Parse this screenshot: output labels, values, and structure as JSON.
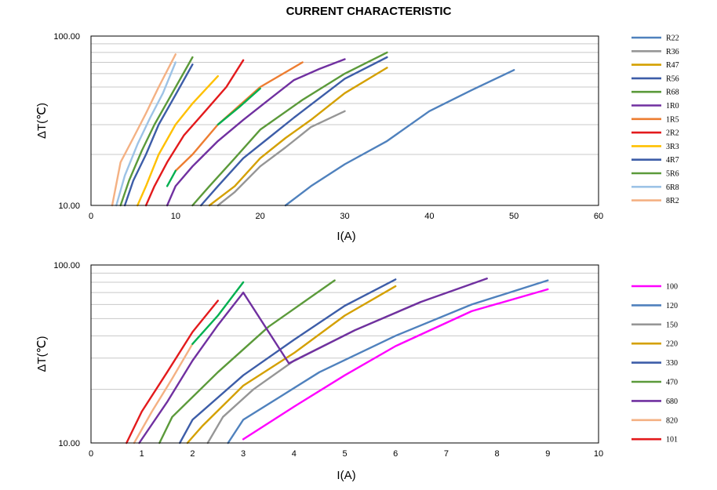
{
  "chart_data": [
    {
      "type": "line",
      "title": "CURRENT CHARACTERISTIC",
      "xlabel": "I(A)",
      "ylabel": "ΔT(℃)",
      "xlim": [
        0,
        60
      ],
      "ylim": [
        10,
        100
      ],
      "yscale": "log",
      "xticks": [
        "0",
        "10",
        "20",
        "30",
        "40",
        "50",
        "60"
      ],
      "yticks": [
        "10.00",
        "100.00"
      ],
      "grid": "horizontal minor log gridlines",
      "legend_position": "right",
      "series": [
        {
          "name": "R22",
          "color": "#4f81bd",
          "x": [
            23,
            26,
            30,
            35,
            40,
            45,
            50
          ],
          "y": [
            10,
            13,
            17.5,
            24,
            36,
            48,
            63
          ]
        },
        {
          "name": "R36",
          "color": "#969696",
          "x": [
            15,
            17,
            20,
            23,
            26,
            30
          ],
          "y": [
            10,
            12,
            17,
            22,
            29,
            36
          ]
        },
        {
          "name": "R47",
          "color": "#d4a000",
          "x": [
            14,
            17,
            20,
            23,
            26,
            30,
            35
          ],
          "y": [
            10,
            13,
            19,
            25,
            32,
            46,
            65
          ]
        },
        {
          "name": "R56",
          "color": "#3d5da8",
          "x": [
            13,
            15,
            18,
            21,
            24,
            30,
            35
          ],
          "y": [
            10,
            13,
            19,
            25,
            33,
            56,
            75
          ]
        },
        {
          "name": "R68",
          "color": "#5b9a3a",
          "x": [
            12,
            14,
            17,
            20,
            25,
            30,
            35
          ],
          "y": [
            10,
            13,
            19,
            28,
            42,
            60,
            80
          ]
        },
        {
          "name": "1R0",
          "color": "#7030a0",
          "x": [
            9,
            10,
            12,
            15,
            18,
            21,
            24,
            27,
            30
          ],
          "y": [
            10,
            13,
            17,
            24,
            32,
            42,
            55,
            64,
            73
          ]
        },
        {
          "name": "1R5",
          "color": "#ed7d31",
          "x": [
            10,
            12,
            15,
            20,
            25
          ],
          "y": [
            16,
            20,
            30,
            50,
            70
          ]
        },
        {
          "name": "2R2",
          "color": "#e31a1c",
          "x": [
            6.5,
            7.5,
            9,
            11,
            13.5,
            16,
            18
          ],
          "y": [
            10,
            13,
            18,
            26,
            36,
            50,
            72
          ]
        },
        {
          "name": "3R3",
          "color": "#ffc000",
          "x": [
            5.5,
            6.5,
            8,
            10,
            12,
            15
          ],
          "y": [
            10,
            13,
            20,
            30,
            40,
            58
          ]
        },
        {
          "name": "4R7",
          "color": "#3d5da8",
          "x": [
            4,
            5,
            6.5,
            8,
            10,
            12
          ],
          "y": [
            10,
            14,
            20,
            30,
            45,
            68
          ]
        },
        {
          "name": "5R6",
          "color": "#5b9a3a",
          "x": [
            3.5,
            4.5,
            6,
            7.5,
            9.5,
            12
          ],
          "y": [
            10,
            14,
            21,
            30,
            45,
            75
          ]
        },
        {
          "name": "6R8",
          "color": "#9dc3e6",
          "x": [
            3,
            4,
            5.5,
            7,
            8.5,
            10
          ],
          "y": [
            10,
            15,
            23,
            33,
            46,
            70
          ]
        },
        {
          "name": "8R2",
          "color": "#f4b183",
          "x": [
            2.5,
            3.5,
            5,
            6.5,
            8,
            10
          ],
          "y": [
            10,
            18,
            25,
            35,
            50,
            78
          ]
        },
        {
          "name": "",
          "color": "#00b050",
          "x": [
            15,
            17.5,
            20
          ],
          "y": [
            30,
            38,
            49
          ]
        },
        {
          "name": "",
          "color": "#00b050",
          "x": [
            9,
            10
          ],
          "y": [
            13,
            16
          ]
        }
      ]
    },
    {
      "type": "line",
      "xlabel": "I(A)",
      "ylabel": "ΔT(℃)",
      "xlim": [
        0,
        10
      ],
      "ylim": [
        10,
        100
      ],
      "yscale": "log",
      "xticks": [
        "0",
        "1",
        "2",
        "3",
        "4",
        "5",
        "6",
        "7",
        "8",
        "9",
        "10"
      ],
      "yticks": [
        "10.00",
        "100.00"
      ],
      "grid": "horizontal minor log gridlines",
      "legend_position": "right",
      "series": [
        {
          "name": "100",
          "color": "#ff00ff",
          "x": [
            3,
            4,
            5,
            6,
            7.5,
            9
          ],
          "y": [
            10.5,
            16,
            24,
            35,
            55,
            73
          ]
        },
        {
          "name": "120",
          "color": "#4f81bd",
          "x": [
            2.7,
            3,
            3.7,
            4.5,
            6,
            7.5,
            9
          ],
          "y": [
            10,
            13.5,
            18,
            25,
            40,
            60,
            82
          ]
        },
        {
          "name": "150",
          "color": "#969696",
          "x": [
            2.3,
            2.6,
            3.2,
            4,
            5.2,
            6.5
          ],
          "y": [
            10,
            14,
            20,
            29,
            43,
            62
          ]
        },
        {
          "name": "220",
          "color": "#d4a000",
          "x": [
            1.9,
            2.2,
            3,
            4,
            5,
            6
          ],
          "y": [
            10,
            12.5,
            21,
            32,
            52,
            76
          ]
        },
        {
          "name": "330",
          "color": "#3d5da8",
          "x": [
            1.75,
            2,
            3,
            4,
            5,
            6
          ],
          "y": [
            10,
            13.5,
            24,
            38,
            59,
            83
          ]
        },
        {
          "name": "470",
          "color": "#5b9a3a",
          "x": [
            1.35,
            1.6,
            2.5,
            3.5,
            4.8
          ],
          "y": [
            10,
            14,
            25,
            45,
            82
          ]
        },
        {
          "name": "680",
          "color": "#7030a0",
          "x": [
            0.95,
            1.5,
            2,
            2.5,
            3,
            3.9,
            5.2,
            6.5,
            7.8
          ],
          "y": [
            10,
            17,
            29,
            46,
            70,
            28,
            43,
            62,
            84
          ]
        },
        {
          "name": "820",
          "color": "#f4b183",
          "x": [
            0.85,
            1.2,
            1.6,
            2
          ],
          "y": [
            10,
            15,
            23,
            36
          ]
        },
        {
          "name": "101",
          "color": "#e31a1c",
          "x": [
            0.7,
            1,
            1.5,
            2,
            2.5
          ],
          "y": [
            10,
            15,
            25,
            42,
            63
          ]
        },
        {
          "name": "",
          "color": "#00b050",
          "x": [
            2,
            2.5,
            3
          ],
          "y": [
            36,
            52,
            80
          ]
        }
      ]
    }
  ]
}
